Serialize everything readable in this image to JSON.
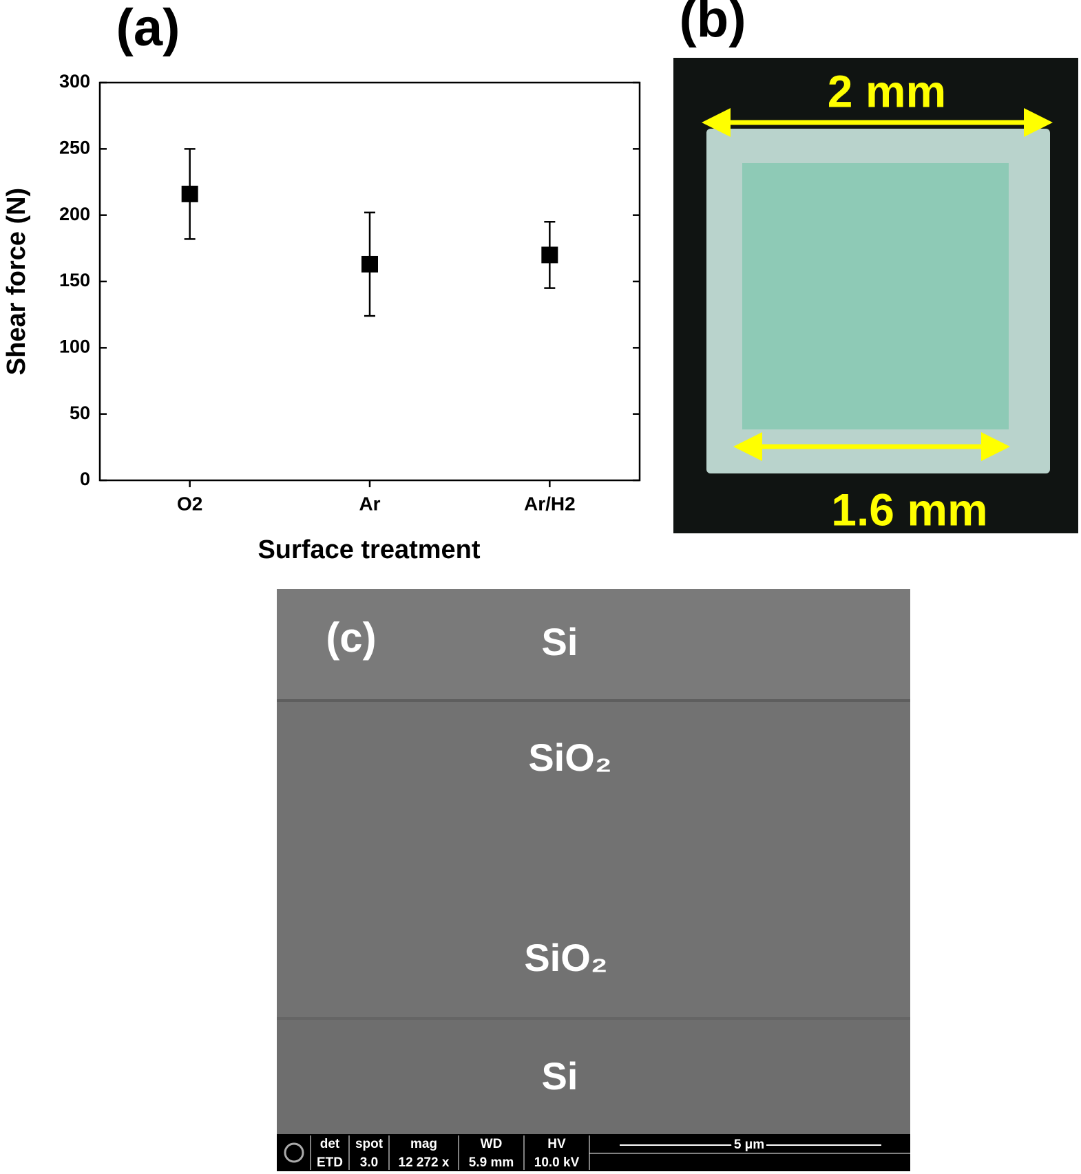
{
  "chart_data": {
    "type": "errorbar",
    "panel_label": "(a)",
    "x_label": "Surface treatment",
    "y_label": "Shear force (N)",
    "categories": [
      "O2",
      "Ar",
      "Ar/H2"
    ],
    "values": [
      216,
      163,
      170
    ],
    "errors": [
      34,
      39,
      25
    ],
    "color": "#000000",
    "ylim": [
      0,
      300
    ],
    "yticks": [
      0,
      50,
      100,
      150,
      200,
      250,
      300
    ],
    "grid": false
  },
  "photo": {
    "panel_label": "(b)",
    "top_dimension": "2 mm",
    "bottom_dimension": "1.6 mm"
  },
  "sem": {
    "panel_label": "(c)",
    "layers": [
      "Si",
      "SiO₂",
      "SiO₂",
      "Si"
    ],
    "info_bar": [
      [
        "det",
        "ETD"
      ],
      [
        "spot",
        "3.0"
      ],
      [
        "mag",
        "12 272 x"
      ],
      [
        "WD",
        "5.9 mm"
      ],
      [
        "HV",
        "10.0 kV"
      ]
    ],
    "scale_bar": "5 μm"
  }
}
